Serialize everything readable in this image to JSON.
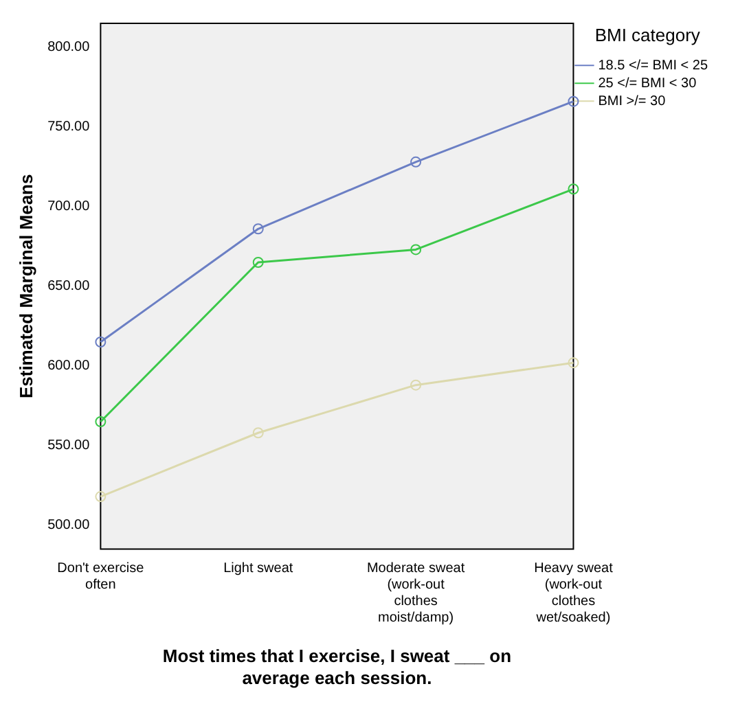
{
  "chart_data": {
    "type": "line",
    "xlabel": "Most times that I exercise, I sweat ___ on average each session.",
    "ylabel": "Estimated Marginal Means",
    "legend_title": "BMI category",
    "categories": [
      "Don't exercise often",
      "Light sweat",
      "Moderate sweat (work-out clothes moist/damp)",
      "Heavy sweat (work-out clothes wet/soaked)"
    ],
    "series": [
      {
        "name": "18.5 </= BMI < 25",
        "color": "#6b7fc4",
        "values": [
          615,
          686,
          728,
          766
        ]
      },
      {
        "name": "25 </= BMI < 30",
        "color": "#3cc84a",
        "values": [
          565,
          665,
          673,
          711
        ]
      },
      {
        "name": "BMI >/= 30",
        "color": "#dcd9ad",
        "values": [
          518,
          558,
          588,
          602
        ]
      }
    ],
    "ylim": [
      485,
      815
    ],
    "yticks": [
      {
        "value": 500,
        "label": "500.00"
      },
      {
        "value": 550,
        "label": "550.00"
      },
      {
        "value": 600,
        "label": "600.00"
      },
      {
        "value": 650,
        "label": "650.00"
      },
      {
        "value": 700,
        "label": "700.00"
      },
      {
        "value": 750,
        "label": "750.00"
      },
      {
        "value": 800,
        "label": "800.00"
      }
    ],
    "grid": false,
    "legend": "right",
    "marker": "circle",
    "line_style": "solid"
  }
}
